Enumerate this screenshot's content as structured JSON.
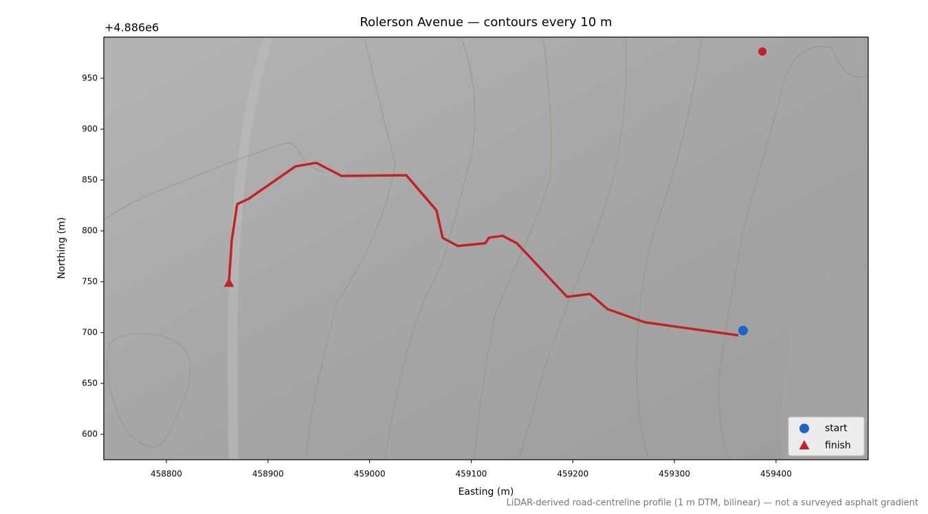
{
  "chart_data": {
    "type": "line",
    "title": "Rolerson Avenue — contours every 10 m",
    "x_label": "Easting (m)",
    "y_label": "Northing (m)",
    "y_offset_label": "+4.886e6",
    "note": "LiDAR-derived road-centreline profile (1 m DTM, bilinear) — not a surveyed asphalt gradient",
    "xlim": [
      458738.4,
      459490.7
    ],
    "ylim": [
      575,
      990.5
    ],
    "xticks": [
      458800,
      458900,
      459000,
      459100,
      459200,
      459300,
      459400
    ],
    "yticks": [
      600,
      650,
      700,
      750,
      800,
      850,
      900,
      950
    ],
    "legend": "lower right",
    "series": [
      {
        "color": "#c42127",
        "x": [
          459362.9,
          459270.9,
          459234.3,
          459216.8,
          459194.4,
          459145,
          459130.8,
          459117.3,
          459113.9,
          459086.8,
          459071.9,
          459065.8,
          459036.1,
          458972.5,
          458947.5,
          458927.2,
          458881.2,
          458869.7,
          458864.3,
          458861.6
        ],
        "values": [
          697.3,
          710.1,
          723,
          738,
          735.1,
          787.8,
          795.2,
          793.2,
          787.8,
          785.1,
          793.2,
          820.2,
          854.7,
          854,
          866.9,
          863.5,
          831.7,
          826.3,
          790.5,
          750
        ]
      },
      {
        "name": "start",
        "color": "#1f63c4",
        "marker": "circle",
        "x": [
          459367.6
        ],
        "values": [
          702
        ]
      },
      {
        "name": "finish",
        "color": "#c42127",
        "marker": "triangle",
        "x": [
          458861.6
        ],
        "values": [
          748.6
        ]
      },
      {
        "color": "#c42127",
        "marker": "circle",
        "x": [
          459386.6
        ],
        "values": [
          976.3
        ]
      }
    ]
  }
}
